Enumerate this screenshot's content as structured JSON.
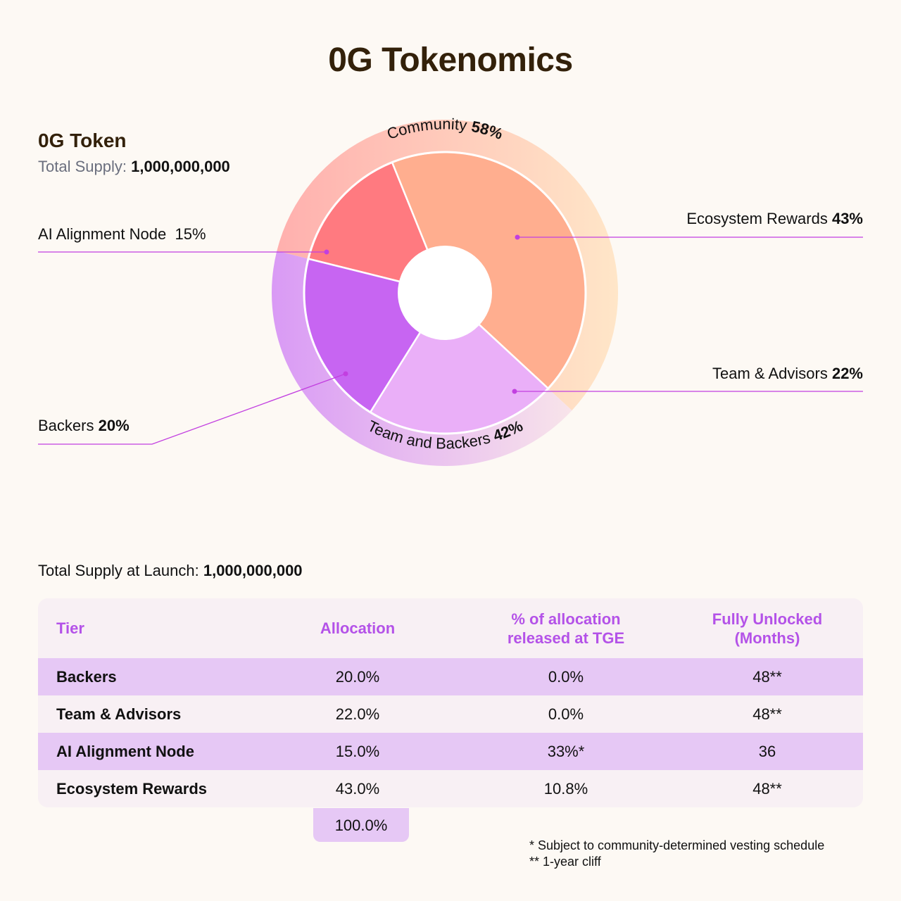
{
  "title": "0G Tokenomics",
  "token": {
    "name": "0G Token",
    "supply_label": "Total Supply:",
    "supply_value": "1,000,000,000"
  },
  "chart_data": {
    "type": "pie",
    "inner_slices": [
      {
        "label": "Ecosystem Rewards",
        "value": 43,
        "value_text": "43%",
        "color": "#ffae8f"
      },
      {
        "label": "Team & Advisors",
        "value": 22,
        "value_text": "22%",
        "color": "#eaaff8"
      },
      {
        "label": "Backers",
        "value": 20,
        "value_text": "20%",
        "color": "#c765f2"
      },
      {
        "label": "AI Alignment Node",
        "value": 15,
        "value_text": "15%",
        "color": "#ff7a80"
      }
    ],
    "outer_groups": [
      {
        "label": "Community",
        "value": 58,
        "value_text": "58%"
      },
      {
        "label": "Team and Backers",
        "value": 42,
        "value_text": "42%"
      }
    ]
  },
  "launch": {
    "label": "Total Supply at Launch:",
    "value": "1,000,000,000"
  },
  "table": {
    "headers": [
      "Tier",
      "Allocation",
      "% of allocation released at TGE",
      "Fully Unlocked (Months)"
    ],
    "header_lines": [
      [
        "Tier"
      ],
      [
        "Allocation"
      ],
      [
        "% of allocation",
        "released at TGE"
      ],
      [
        "Fully Unlocked",
        "(Months)"
      ]
    ],
    "rows": [
      [
        "Backers",
        "20.0%",
        "0.0%",
        "48**"
      ],
      [
        "Team & Advisors",
        "22.0%",
        "0.0%",
        "48**"
      ],
      [
        "AI Alignment Node",
        "15.0%",
        "33%*",
        "36"
      ],
      [
        "Ecosystem Rewards",
        "43.0%",
        "10.8%",
        "48**"
      ]
    ],
    "total": "100.0%"
  },
  "footnotes": [
    "* Subject to community-determined vesting schedule",
    "** 1-year cliff"
  ],
  "colors": {
    "title": "#33210a",
    "header_text": "#b452e8",
    "row_highlight": "#e6c8f5",
    "row_light": "#f8f0f4",
    "leader_line": "#c23fe0"
  }
}
